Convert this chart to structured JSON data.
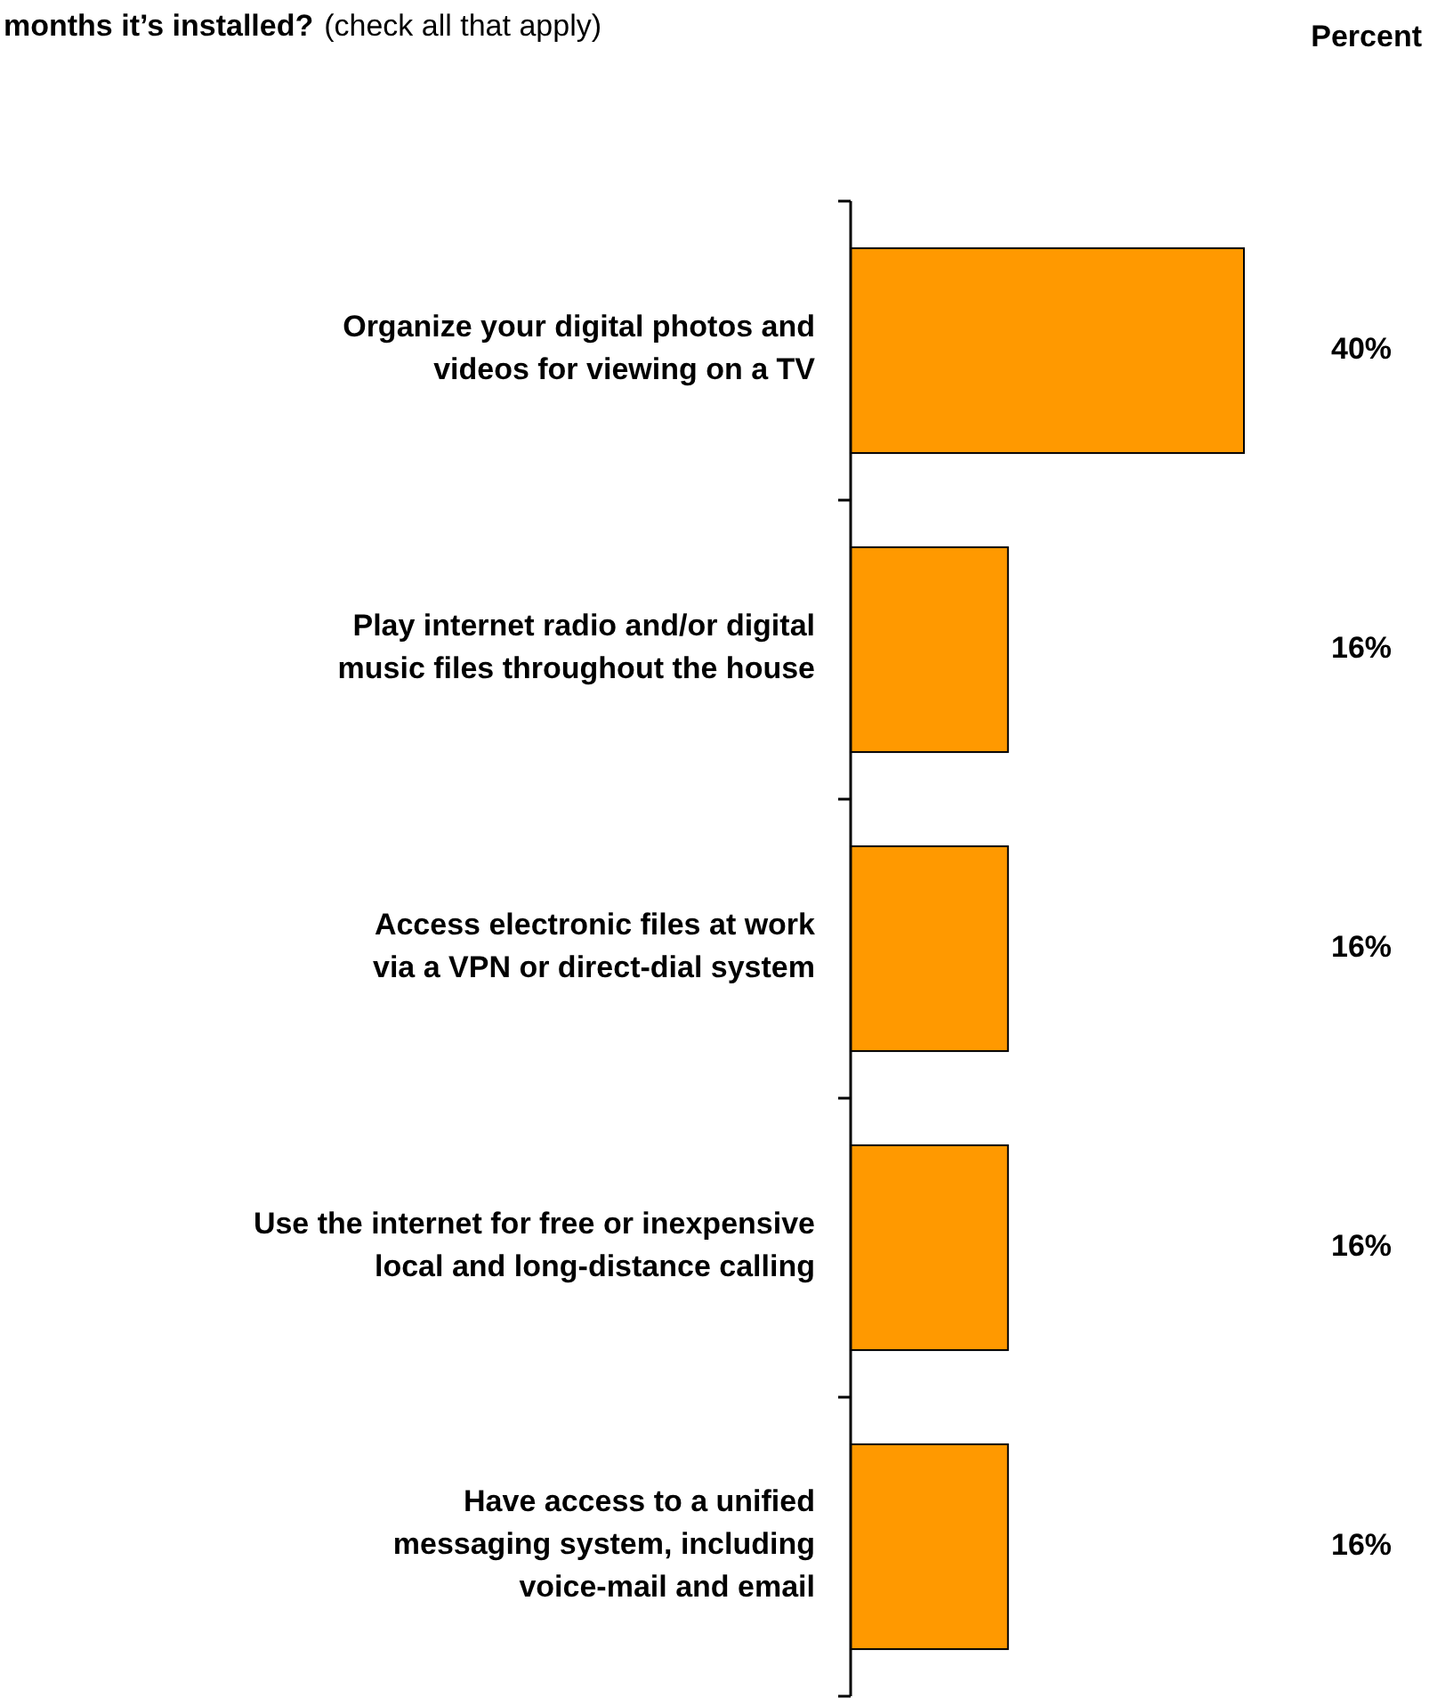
{
  "chart_data": {
    "type": "bar",
    "orientation": "horizontal",
    "title": "months it’s installed?",
    "subtitle": "(check all that apply)",
    "annotations": [
      "Percent"
    ],
    "categories": [
      "Organize your digital photos and\nvideos for viewing on a TV",
      "Play internet radio and/or digital\nmusic files throughout the house",
      "Access electronic files at work\nvia a VPN or direct-dial system",
      "Use the internet for free or inexpensive\nlocal and long-distance calling",
      "Have access to a unified\nmessaging system, including\nvoice-mail and email"
    ],
    "values": [
      40,
      16,
      16,
      16,
      16
    ],
    "value_labels": [
      "40%",
      "16%",
      "16%",
      "16%",
      "16%"
    ],
    "color": "#ff9900"
  }
}
